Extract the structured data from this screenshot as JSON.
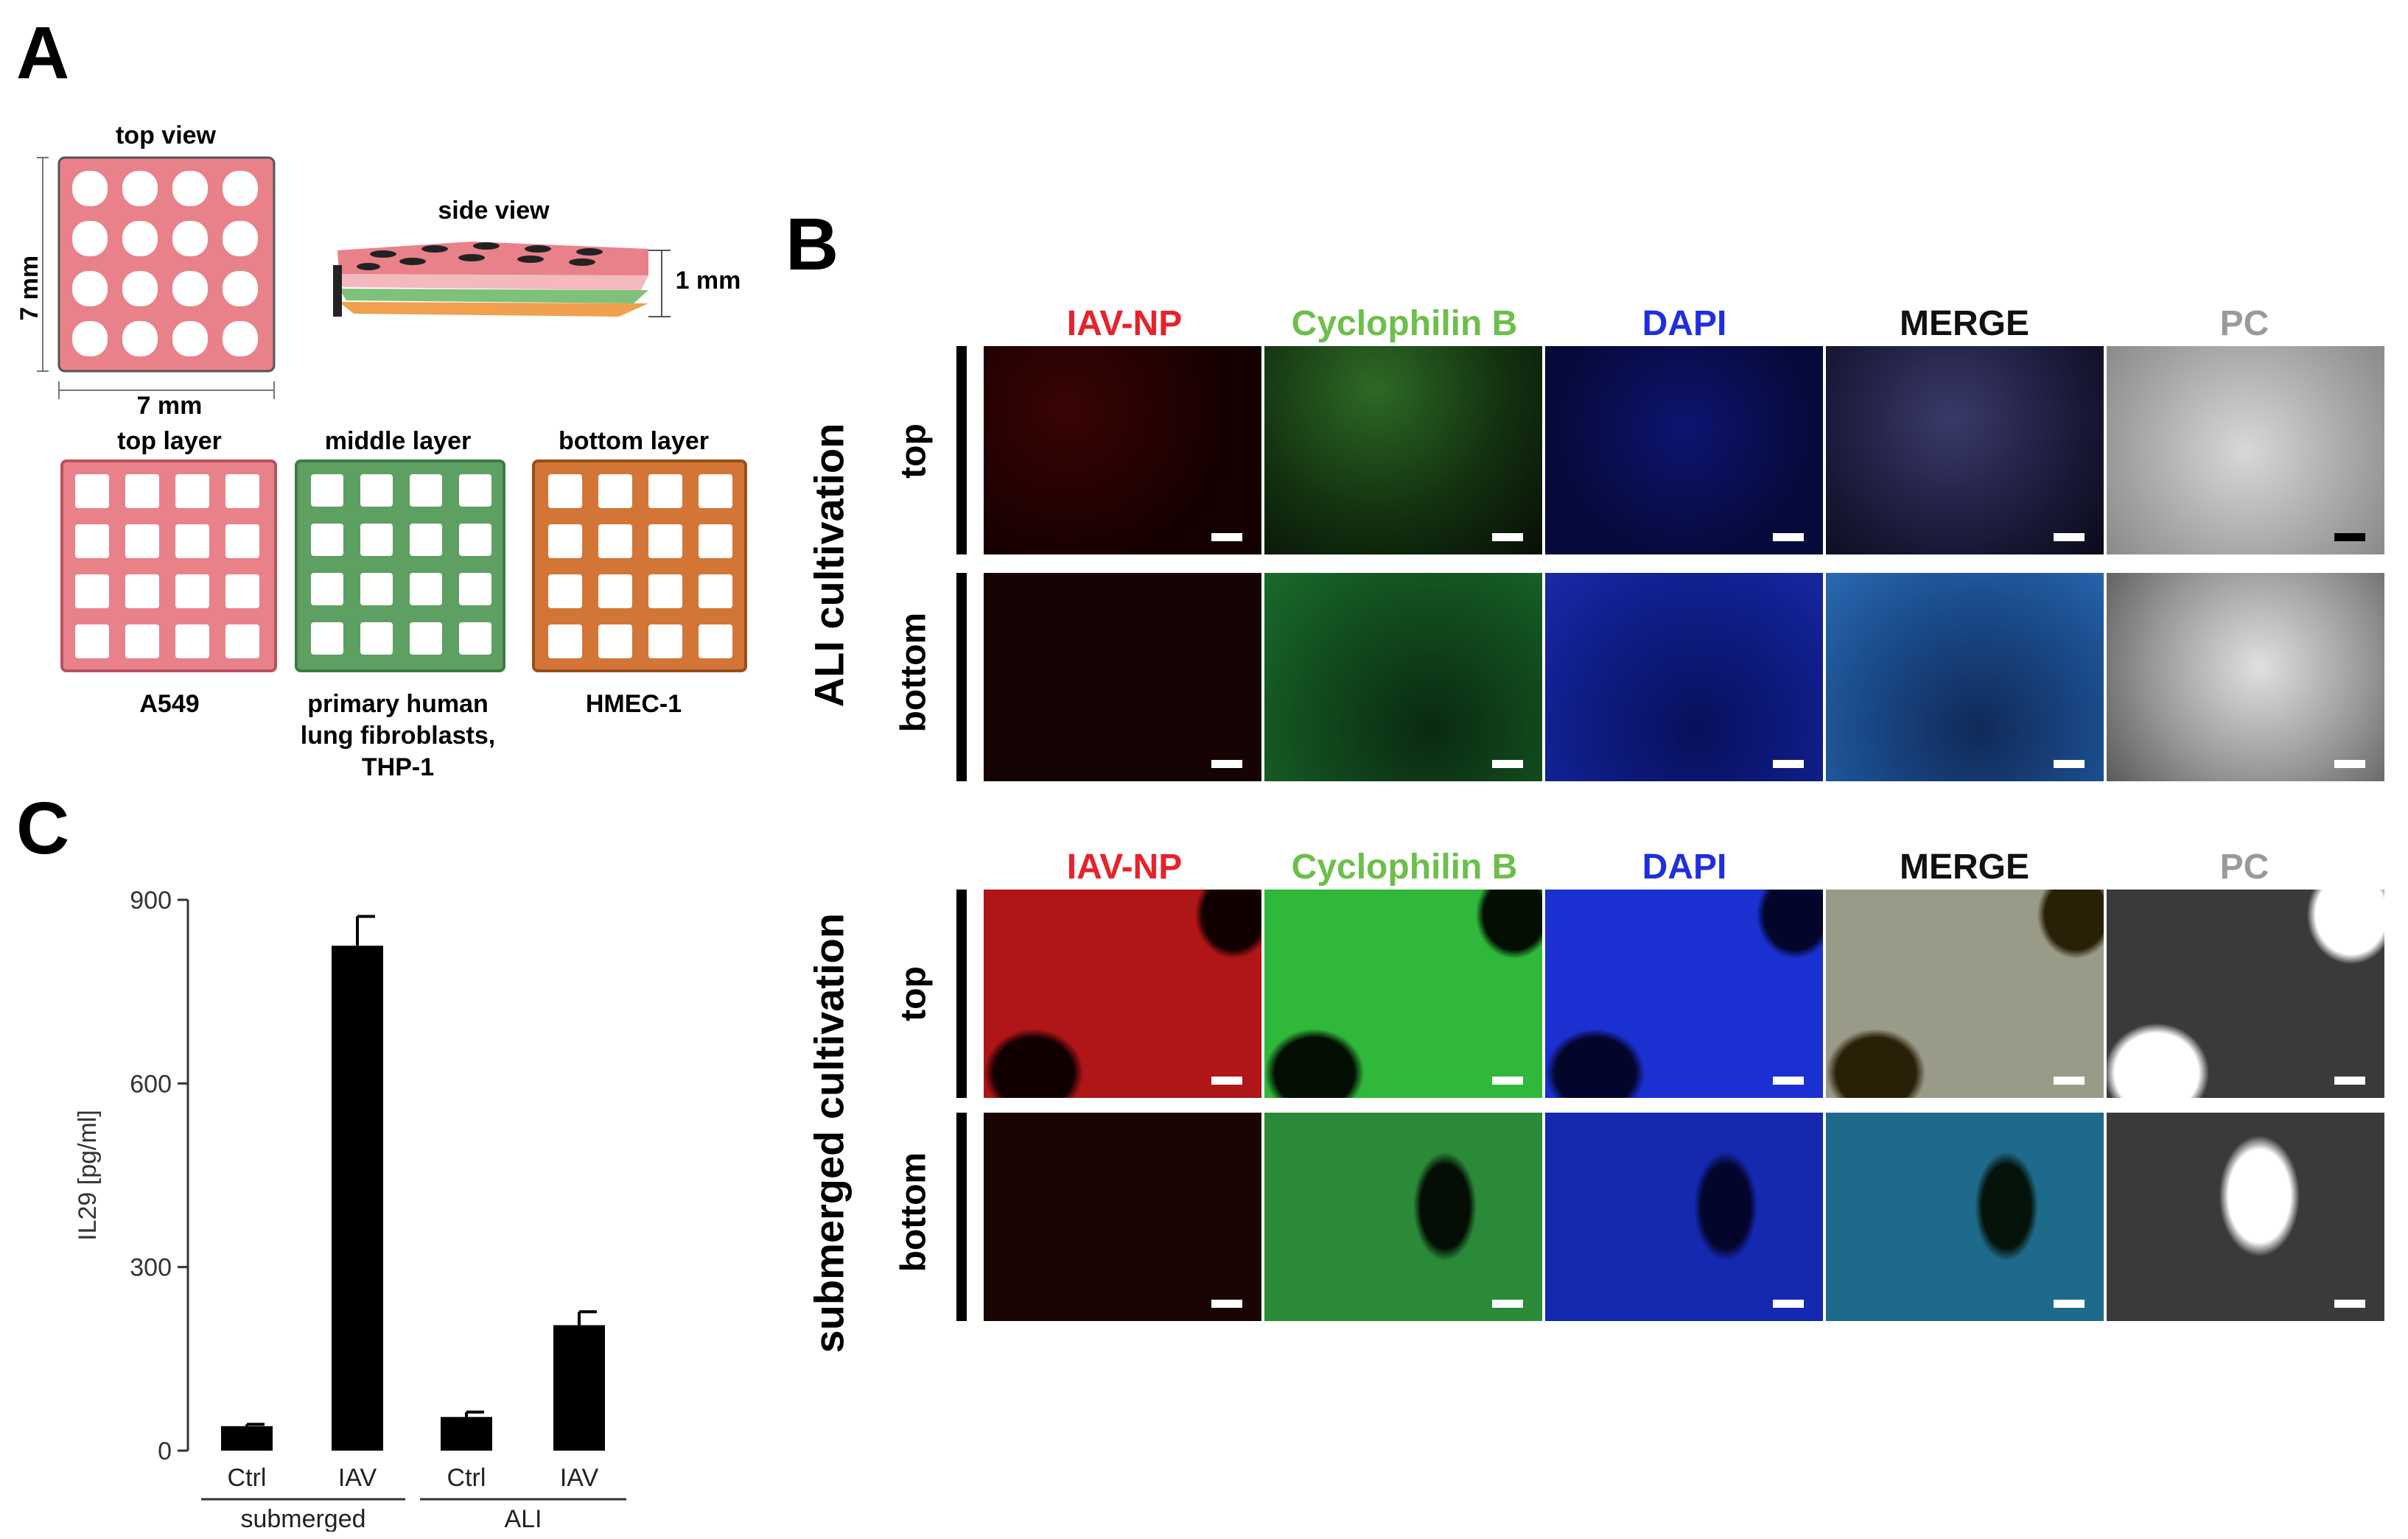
{
  "panelA": {
    "letter": "A",
    "top_view": "top view",
    "side_view": "side view",
    "dim_vertical": "7 mm",
    "dim_horizontal": "7 mm",
    "dim_height": "1 mm",
    "layers": [
      {
        "title": "top layer",
        "cells": "A549",
        "color": "#e9818b"
      },
      {
        "title": "middle layer",
        "cells": "primary human lung fibroblasts, THP-1",
        "color": "#5ea062"
      },
      {
        "title": "bottom layer",
        "cells": "HMEC-1",
        "color": "#d27536"
      }
    ],
    "middle_cells_lines": [
      "primary human",
      "lung fibroblasts,",
      "THP-1"
    ]
  },
  "panelB": {
    "letter": "B",
    "channels": [
      {
        "name": "IAV-NP",
        "color": "#e8212a"
      },
      {
        "name": "Cyclophilin B",
        "color": "#6cbf4a"
      },
      {
        "name": "DAPI",
        "color": "#1f2ee0"
      },
      {
        "name": "MERGE",
        "color": "#111111"
      },
      {
        "name": "PC",
        "color": "#9a9a9a"
      }
    ],
    "groups": [
      {
        "label": "ALI cultivation",
        "rows": [
          "top",
          "bottom"
        ]
      },
      {
        "label": "submerged cultivation",
        "rows": [
          "top",
          "bottom"
        ]
      }
    ]
  },
  "panelC": {
    "letter": "C",
    "chart_data": {
      "type": "bar",
      "categories": [
        "Ctrl",
        "IAV",
        "Ctrl",
        "IAV"
      ],
      "groups": [
        "submerged",
        "ALI"
      ],
      "values": [
        40,
        825,
        55,
        205
      ],
      "errors": [
        3,
        48,
        8,
        22
      ],
      "ylabel": "IL29 [pg/ml]",
      "ylim": [
        0,
        900
      ],
      "yticks": [
        "0",
        "300",
        "600",
        "900"
      ],
      "colors": {
        "bar": "#000000"
      }
    }
  }
}
